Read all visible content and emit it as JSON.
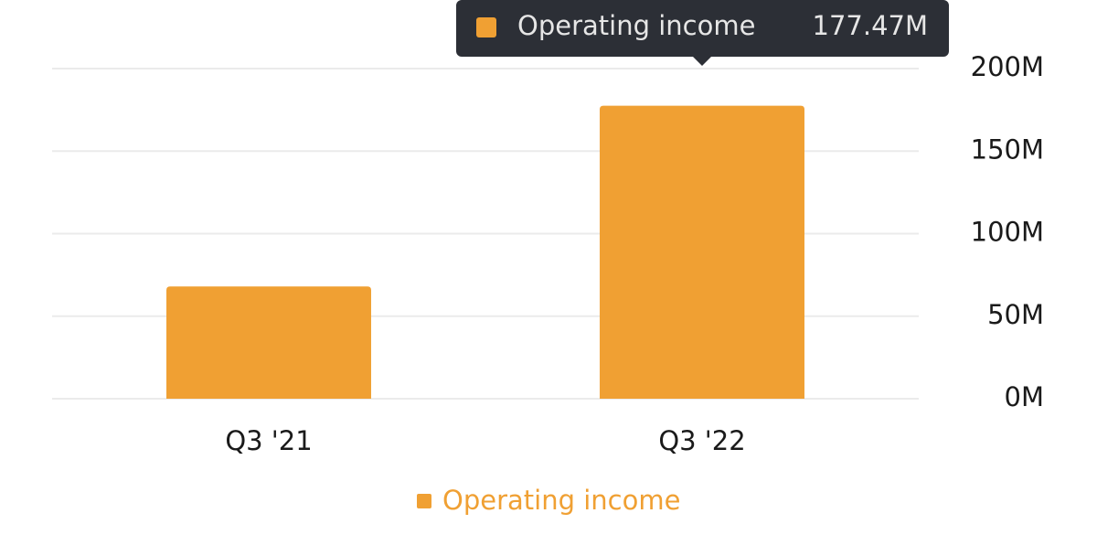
{
  "chart_data": {
    "type": "bar",
    "categories": [
      "Q3 '21",
      "Q3 '22"
    ],
    "series": [
      {
        "name": "Operating income",
        "color": "#f0a033",
        "values": [
          68,
          177.47
        ],
        "value_labels": [
          null,
          "177.47M"
        ]
      }
    ],
    "ylim": [
      0,
      200
    ],
    "yticks": [
      {
        "value": 0,
        "label": "0M"
      },
      {
        "value": 50,
        "label": "50M"
      },
      {
        "value": 100,
        "label": "100M"
      },
      {
        "value": 150,
        "label": "150M"
      },
      {
        "value": 200,
        "label": "200M"
      }
    ],
    "grid": true,
    "legend": "bottom"
  }
}
